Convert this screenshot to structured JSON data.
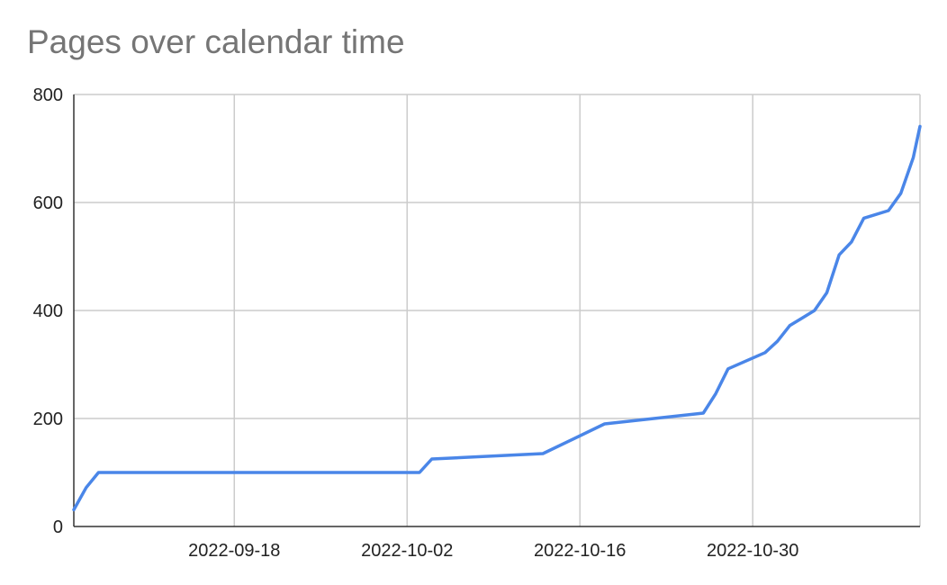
{
  "chart_data": {
    "type": "line",
    "title": "Pages over calendar time",
    "xlabel": "",
    "ylabel": "",
    "x_type": "date",
    "xlim": [
      "2022-09-05",
      "2022-11-12"
    ],
    "ylim": [
      0,
      800
    ],
    "y_ticks": [
      0,
      200,
      400,
      600,
      800
    ],
    "x_ticks": [
      "2022-09-18",
      "2022-10-02",
      "2022-10-16",
      "2022-10-30"
    ],
    "grid": true,
    "legend": "none",
    "series": [
      {
        "color": "#4a86e8",
        "points": [
          [
            "2022-09-05",
            31
          ],
          [
            "2022-09-06",
            72
          ],
          [
            "2022-09-07",
            100
          ],
          [
            "2022-10-03",
            100
          ],
          [
            "2022-10-04",
            125
          ],
          [
            "2022-10-13",
            135
          ],
          [
            "2022-10-18",
            190
          ],
          [
            "2022-10-26",
            210
          ],
          [
            "2022-10-27",
            246
          ],
          [
            "2022-10-28",
            292
          ],
          [
            "2022-10-31",
            322
          ],
          [
            "2022-11-01",
            343
          ],
          [
            "2022-11-02",
            372
          ],
          [
            "2022-11-04",
            400
          ],
          [
            "2022-11-05",
            433
          ],
          [
            "2022-11-06",
            503
          ],
          [
            "2022-11-07",
            527
          ],
          [
            "2022-11-08",
            571
          ],
          [
            "2022-11-10",
            585
          ],
          [
            "2022-11-11",
            617
          ],
          [
            "2022-11-12",
            683
          ],
          [
            "2022-11-14",
            741
          ]
        ]
      }
    ]
  }
}
